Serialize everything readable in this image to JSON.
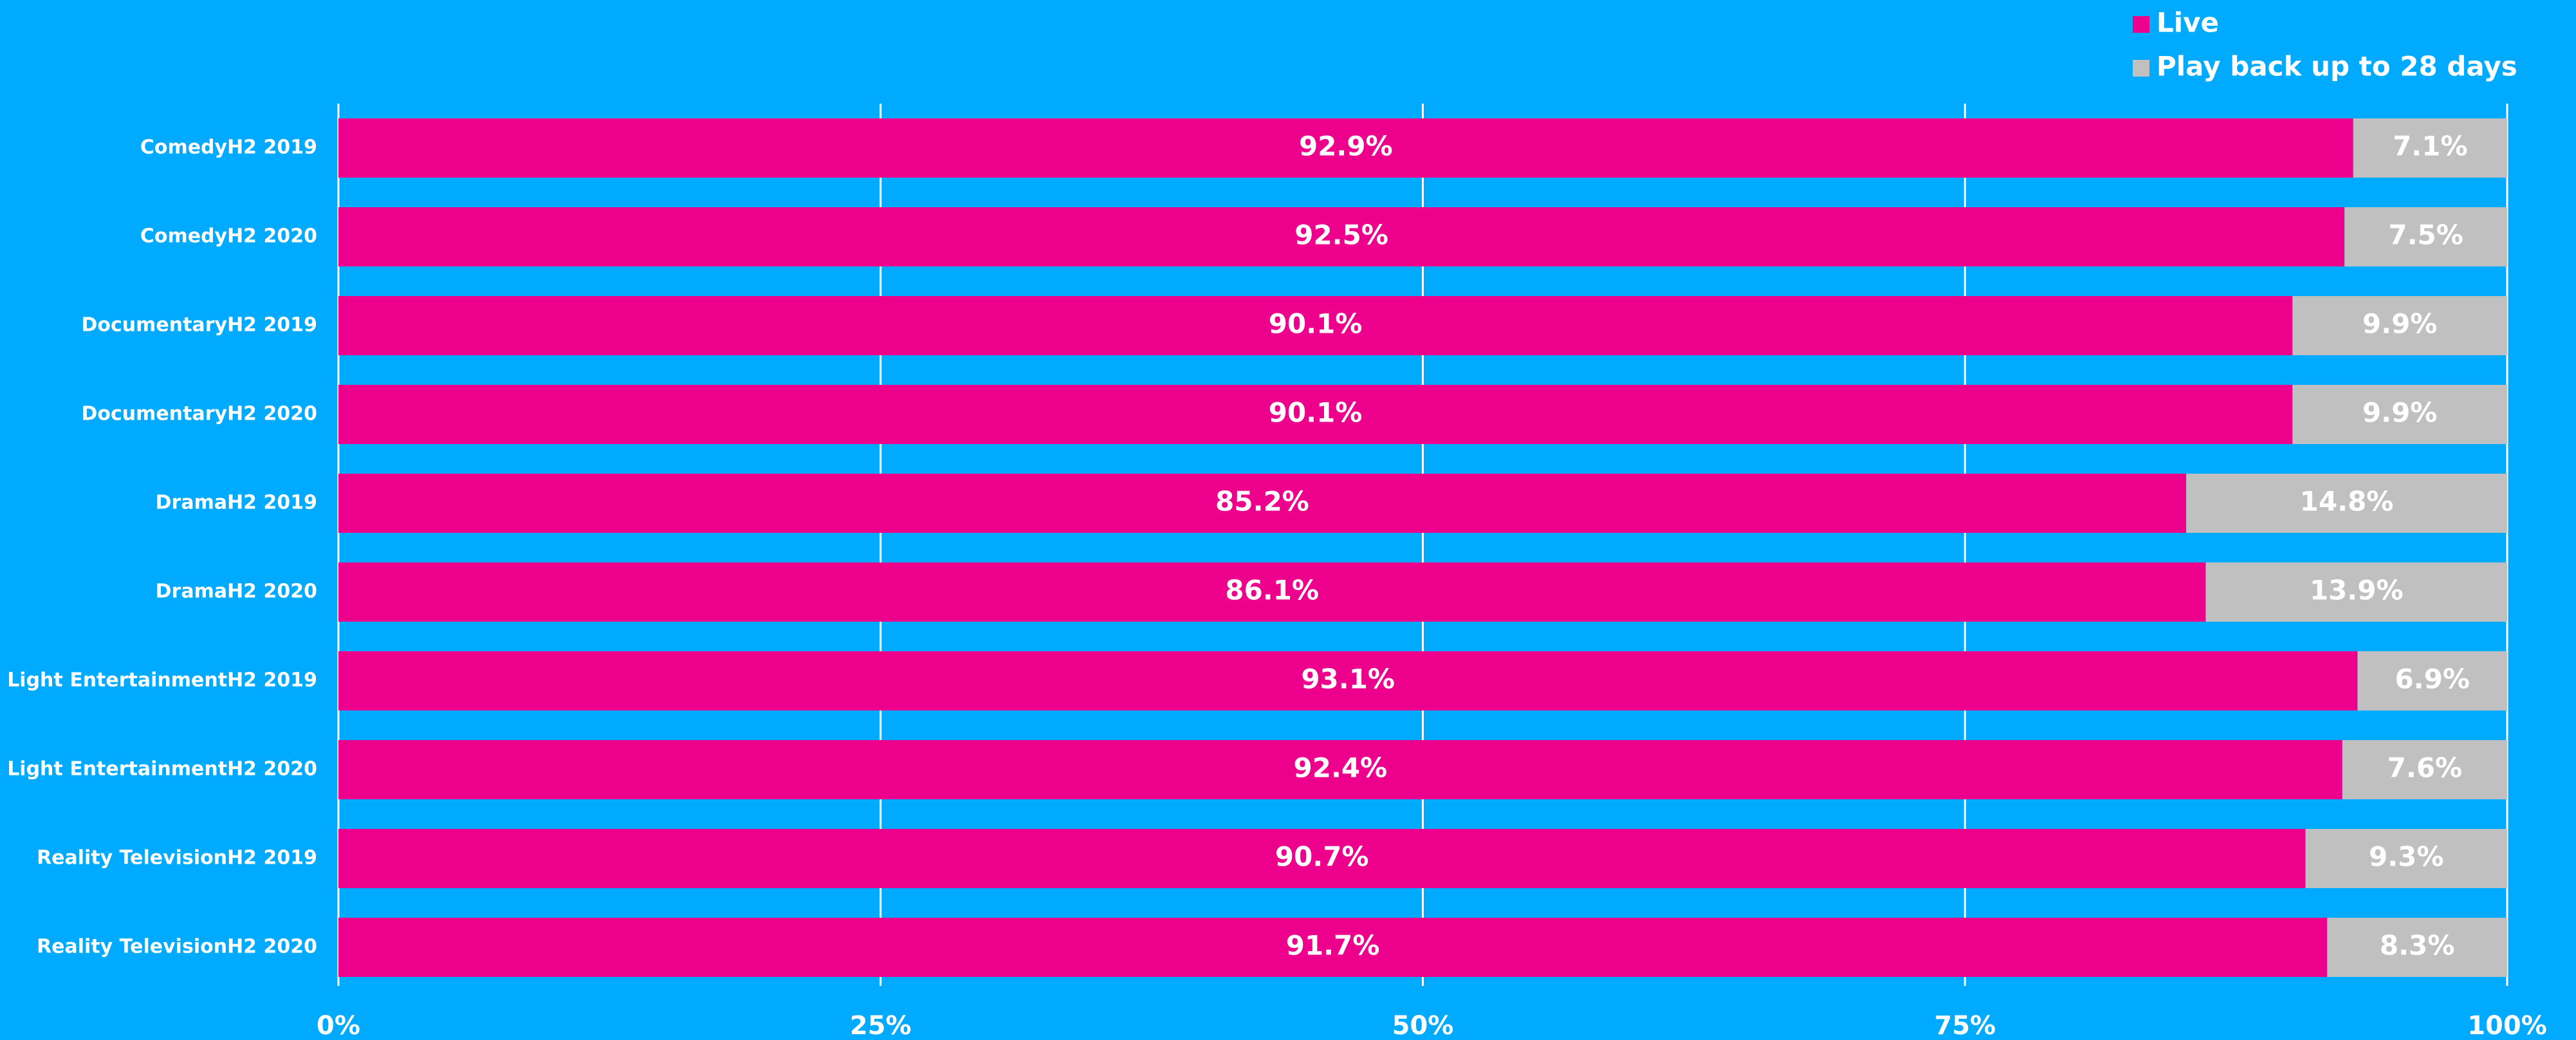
{
  "chart_data": {
    "type": "stacked_barh",
    "categories": [
      "ComedyH2 2019",
      "ComedyH2 2020",
      "DocumentaryH2 2019",
      "DocumentaryH2 2020",
      "DramaH2 2019",
      "DramaH2 2020",
      "Light EntertainmentH2 2019",
      "Light EntertainmentH2 2020",
      "Reality TelevisionH2 2019",
      "Reality TelevisionH2 2020"
    ],
    "series": [
      {
        "name": "Live",
        "color": "#ec008c",
        "values": [
          92.9,
          92.5,
          90.1,
          90.1,
          85.2,
          86.1,
          93.1,
          92.4,
          90.7,
          91.7
        ],
        "value_labels": [
          "92.9%",
          "92.5%",
          "90.1%",
          "90.1%",
          "85.2%",
          "86.1%",
          "93.1%",
          "92.4%",
          "90.7%",
          "91.7%"
        ]
      },
      {
        "name": "Play back up to 28 days",
        "color": "#c0c0c0",
        "values": [
          7.1,
          7.5,
          9.9,
          9.9,
          14.8,
          13.9,
          6.9,
          7.6,
          9.3,
          8.3
        ],
        "value_labels": [
          "7.1%",
          "7.5%",
          "9.9%",
          "9.9%",
          "14.8%",
          "13.9%",
          "6.9%",
          "7.6%",
          "9.3%",
          "8.3%"
        ]
      }
    ],
    "xlim": [
      0,
      100
    ],
    "xticks": [
      {
        "value": 0,
        "label": "0%"
      },
      {
        "value": 25,
        "label": "25%"
      },
      {
        "value": 50,
        "label": "50%"
      },
      {
        "value": 75,
        "label": "75%"
      },
      {
        "value": 100,
        "label": "100%"
      }
    ],
    "grid": true,
    "legend": "top-right"
  }
}
